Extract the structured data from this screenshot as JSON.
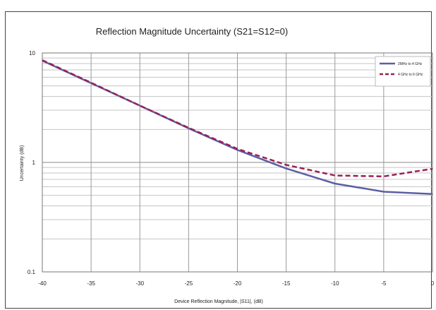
{
  "chart_data": {
    "type": "line",
    "title": "Reflection Magnitude Uncertainty  (S21=S12=0)",
    "xlabel": "Device Reflection Magnitude, |S11|, (dB)",
    "ylabel": "Uncertainty (dB)",
    "x_scale": "linear",
    "y_scale": "log",
    "xlim": [
      -40,
      0
    ],
    "ylim": [
      0.1,
      10
    ],
    "x_ticks": [
      "-40",
      "-35",
      "-30",
      "-25",
      "-20",
      "-15",
      "-10",
      "-5",
      "0"
    ],
    "y_ticks": [
      "0.1",
      "1",
      "10"
    ],
    "grid": true,
    "legend_position": "top-right",
    "x": [
      -40,
      -35,
      -30,
      -25,
      -20,
      -15,
      -10,
      -5,
      0
    ],
    "series": [
      {
        "name": "2MHz to 4 GHz",
        "values": [
          8.5,
          5.3,
          3.3,
          2.05,
          1.3,
          0.88,
          0.64,
          0.54,
          0.515
        ],
        "color": "#5b5fa3",
        "style": "solid"
      },
      {
        "name": "4 GHz to 6 GHz",
        "values": [
          8.6,
          5.35,
          3.3,
          2.07,
          1.33,
          0.95,
          0.76,
          0.745,
          0.875
        ],
        "color": "#9a2055",
        "style": "dashed"
      }
    ]
  }
}
